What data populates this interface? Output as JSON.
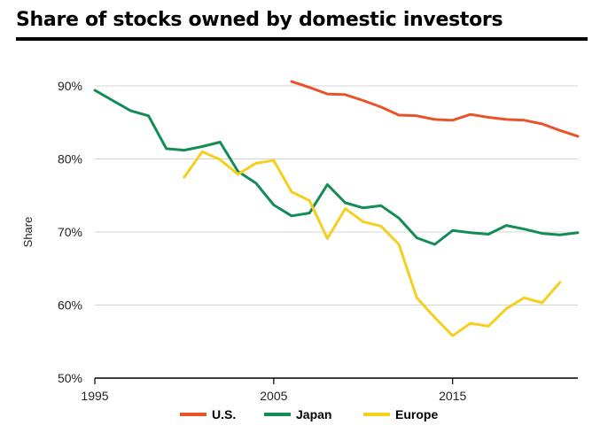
{
  "chart_data": {
    "type": "line",
    "title": "Share of stocks owned by domestic investors",
    "xlabel": "",
    "ylabel": "Share",
    "xlim": [
      1995,
      2022
    ],
    "ylim": [
      50,
      90
    ],
    "x_ticks": [
      1995,
      2005,
      2015
    ],
    "x_tick_labels": [
      "1995",
      "2005",
      "2015"
    ],
    "y_ticks": [
      50,
      60,
      70,
      80,
      90
    ],
    "y_tick_labels": [
      "50%",
      "60%",
      "70%",
      "80%",
      "90%"
    ],
    "grid": "horizontal",
    "legend_position": "bottom",
    "series": [
      {
        "name": "U.S.",
        "color": "#E8542A",
        "x": [
          2006,
          2007,
          2008,
          2009,
          2010,
          2011,
          2012,
          2013,
          2014,
          2015,
          2016,
          2017,
          2018,
          2019,
          2020,
          2021,
          2022
        ],
        "values": [
          90.6,
          89.8,
          88.9,
          88.8,
          88.0,
          87.1,
          86.0,
          85.9,
          85.4,
          85.3,
          86.1,
          85.7,
          85.4,
          85.3,
          84.8,
          83.9,
          83.1
        ]
      },
      {
        "name": "Japan",
        "color": "#138C56",
        "x": [
          1995,
          1996,
          1997,
          1998,
          1999,
          2000,
          2001,
          2002,
          2003,
          2004,
          2005,
          2006,
          2007,
          2008,
          2009,
          2010,
          2011,
          2012,
          2013,
          2014,
          2015,
          2016,
          2017,
          2018,
          2019,
          2020,
          2021,
          2022
        ],
        "values": [
          89.4,
          88.0,
          86.6,
          85.9,
          81.4,
          81.2,
          81.7,
          82.3,
          78.3,
          76.7,
          73.7,
          72.2,
          72.6,
          76.5,
          74.0,
          73.3,
          73.6,
          71.9,
          69.2,
          68.3,
          70.2,
          69.9,
          69.7,
          70.9,
          70.4,
          69.8,
          69.6,
          69.9
        ]
      },
      {
        "name": "Europe",
        "color": "#F5CF1E",
        "x": [
          2000,
          2001,
          2002,
          2003,
          2004,
          2005,
          2006,
          2007,
          2008,
          2009,
          2010,
          2011,
          2012,
          2013,
          2014,
          2015,
          2016,
          2017,
          2018,
          2019,
          2020,
          2021
        ],
        "values": [
          77.5,
          81.0,
          79.9,
          77.9,
          79.4,
          79.8,
          75.5,
          74.3,
          69.1,
          73.2,
          71.4,
          70.8,
          68.3,
          61.0,
          58.3,
          55.8,
          57.5,
          57.1,
          59.5,
          61.0,
          60.3,
          63.1
        ]
      }
    ]
  }
}
